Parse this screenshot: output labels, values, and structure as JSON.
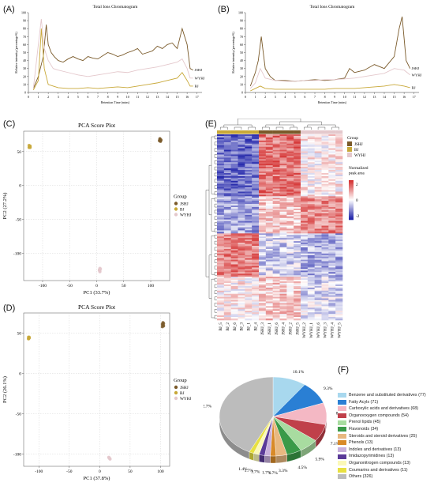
{
  "panel_letters": [
    "(A)",
    "(B)",
    "(C)",
    "(D)",
    "(E)",
    "(F)"
  ],
  "colors": {
    "JSHJ": "#7a5a2a",
    "BJ": "#c8a838",
    "WYHJ": "#e4c8cc",
    "heat_high": "#d43030",
    "heat_low": "#1c20a8"
  },
  "chart_data": [
    {
      "panel": "A",
      "type": "line",
      "title": "Total Ions Chromatogram",
      "xlabel": "Retention Time (mins)",
      "ylabel": "Relative intensity (percentage%)",
      "xticks": [
        "0",
        "1",
        "2",
        "3",
        "4",
        "5",
        "6",
        "7",
        "8",
        "9",
        "10",
        "11",
        "12",
        "13",
        "14",
        "15",
        "16",
        "17"
      ],
      "yticks": [
        "0",
        "10",
        "20",
        "30",
        "40",
        "50",
        "60",
        "70",
        "80",
        "90",
        "100"
      ],
      "series": [
        {
          "name": "JSHJ",
          "x": [
            0.5,
            1.0,
            1.5,
            1.8,
            2.0,
            2.3,
            2.6,
            3.0,
            3.5,
            4.0,
            4.5,
            5.0,
            5.5,
            6.0,
            6.5,
            7.0,
            7.5,
            8.0,
            8.5,
            9.0,
            9.5,
            10.0,
            10.5,
            11.0,
            11.5,
            12.0,
            12.5,
            13.0,
            13.5,
            14.0,
            14.5,
            15.0,
            15.5,
            16.0,
            16.3,
            16.6
          ],
          "y": [
            5,
            20,
            45,
            85,
            60,
            50,
            45,
            40,
            38,
            42,
            45,
            42,
            40,
            45,
            43,
            42,
            46,
            50,
            48,
            45,
            47,
            50,
            52,
            55,
            48,
            50,
            52,
            58,
            55,
            60,
            62,
            55,
            80,
            60,
            30,
            28
          ]
        },
        {
          "name": "WYHJ",
          "x": [
            0.5,
            1.0,
            1.3,
            1.6,
            2.0,
            2.5,
            3.0,
            4.0,
            5.0,
            6.0,
            7.0,
            8.0,
            9.0,
            10.0,
            11.0,
            12.0,
            13.0,
            14.0,
            15.0,
            15.5,
            16.0,
            16.3,
            16.6
          ],
          "y": [
            5,
            60,
            92,
            55,
            40,
            30,
            28,
            25,
            22,
            20,
            22,
            24,
            26,
            25,
            28,
            30,
            32,
            35,
            38,
            42,
            30,
            18,
            18
          ]
        },
        {
          "name": "BJ",
          "x": [
            0.5,
            1.0,
            1.3,
            1.6,
            2.0,
            2.5,
            3.0,
            4.0,
            5.0,
            6.0,
            7.0,
            8.0,
            9.0,
            10.0,
            11.0,
            12.0,
            13.0,
            14.0,
            15.0,
            15.5,
            16.0,
            16.3,
            16.6
          ],
          "y": [
            3,
            15,
            80,
            30,
            10,
            8,
            6,
            5,
            5,
            6,
            5,
            6,
            7,
            6,
            8,
            10,
            12,
            15,
            18,
            25,
            15,
            8,
            8
          ]
        }
      ]
    },
    {
      "panel": "B",
      "type": "line",
      "title": "Total Ions Chromatogram",
      "xlabel": "Retention Time (mins)",
      "ylabel": "Relative intensity (percentage%)",
      "xticks": [
        "0",
        "1",
        "2",
        "3",
        "4",
        "5",
        "6",
        "7",
        "8",
        "9",
        "10",
        "11",
        "12",
        "13",
        "14",
        "15",
        "16",
        "17"
      ],
      "yticks": [
        "0",
        "10",
        "20",
        "30",
        "40",
        "50",
        "60",
        "70",
        "80",
        "90",
        "100"
      ],
      "series": [
        {
          "name": "JSHJ",
          "x": [
            0.5,
            1.0,
            1.3,
            1.6,
            2.0,
            2.5,
            3.0,
            4.0,
            5.0,
            6.0,
            7.0,
            8.0,
            9.0,
            10.0,
            10.5,
            11.0,
            12.0,
            13.0,
            14.0,
            15.0,
            15.5,
            15.8,
            16.2,
            16.6
          ],
          "y": [
            8,
            25,
            40,
            70,
            30,
            20,
            15,
            15,
            14,
            15,
            16,
            15,
            16,
            18,
            30,
            25,
            28,
            35,
            30,
            45,
            80,
            95,
            40,
            30
          ]
        },
        {
          "name": "WYHJ",
          "x": [
            0.5,
            1.0,
            1.5,
            2.0,
            3.0,
            4.0,
            5.0,
            6.0,
            7.0,
            8.0,
            9.0,
            10.0,
            11.0,
            12.0,
            13.0,
            14.0,
            15.0,
            16.0,
            16.6
          ],
          "y": [
            5,
            12,
            30,
            18,
            15,
            14,
            14,
            15,
            15,
            16,
            16,
            17,
            18,
            20,
            22,
            24,
            30,
            28,
            22
          ]
        },
        {
          "name": "BJ",
          "x": [
            0.5,
            1.0,
            1.5,
            2.0,
            3.0,
            4.0,
            5.0,
            6.0,
            7.0,
            8.0,
            9.0,
            10.0,
            11.0,
            12.0,
            13.0,
            14.0,
            15.0,
            16.0,
            16.6
          ],
          "y": [
            2,
            5,
            8,
            5,
            4,
            4,
            4,
            4,
            4,
            4,
            5,
            5,
            5,
            6,
            7,
            8,
            10,
            8,
            6
          ]
        }
      ]
    },
    {
      "panel": "C",
      "type": "scatter",
      "title": "PCA Score Plot",
      "xlabel": "PC1 (33.7%)",
      "ylabel": "PC2 (27.2%)",
      "xlim": [
        -135,
        135
      ],
      "ylim": [
        -140,
        80
      ],
      "xticks": [
        "-100",
        "-50",
        "0",
        "50",
        "100"
      ],
      "yticks": [
        "50",
        "0",
        "-50",
        "-100"
      ],
      "legend_title": "Group",
      "series": [
        {
          "name": "JSHJ",
          "x": [
            116,
            117,
            118,
            119,
            117,
            118
          ],
          "y": [
            66,
            68,
            65,
            67,
            69,
            66
          ]
        },
        {
          "name": "BJ",
          "x": [
            -125,
            -124,
            -123,
            -125,
            -124,
            -123
          ],
          "y": [
            56,
            57,
            58,
            59,
            57,
            56
          ]
        },
        {
          "name": "WYHJ",
          "x": [
            5,
            6,
            6,
            5,
            7,
            6
          ],
          "y": [
            -124,
            -126,
            -122,
            -125,
            -123,
            -127
          ]
        }
      ]
    },
    {
      "panel": "D",
      "type": "scatter",
      "title": "PCA Score Plot",
      "xlabel": "PC1 (37.8%)",
      "ylabel": "PC2 (26.1%)",
      "xlim": [
        -125,
        115
      ],
      "ylim": [
        -115,
        75
      ],
      "xticks": [
        "-100",
        "-50",
        "0",
        "50",
        "100"
      ],
      "yticks": [
        "50",
        "0",
        "-50",
        "-100"
      ],
      "legend_title": "Group",
      "series": [
        {
          "name": "JSHJ",
          "x": [
            103,
            104,
            105,
            104,
            103,
            105
          ],
          "y": [
            58,
            60,
            62,
            63,
            61,
            59
          ]
        },
        {
          "name": "BJ",
          "x": [
            -117,
            -116,
            -117,
            -116,
            -117,
            -116
          ],
          "y": [
            43,
            44,
            45,
            44,
            43,
            45
          ]
        },
        {
          "name": "WYHJ",
          "x": [
            15,
            16,
            17,
            16,
            15,
            17
          ],
          "y": [
            -104,
            -105,
            -106,
            -105,
            -104,
            -106
          ]
        }
      ]
    },
    {
      "panel": "E",
      "type": "heatmap",
      "legend_title": "Group",
      "groups": [
        "JSHJ",
        "BJ",
        "WYHJ"
      ],
      "scale_title": "Normalized peak area",
      "scale_ticks": [
        "2",
        "0",
        "-2"
      ],
      "columns": [
        "BJ_5",
        "BJ_2",
        "BJ_6",
        "BJ_3",
        "BJ_1",
        "BJ_4",
        "JSHJ_3",
        "JSHJ_1",
        "JSHJ_6",
        "JSHJ_4",
        "JSHJ_2",
        "JSHJ_5",
        "WYHJ_2",
        "WYHJ_1",
        "WYHJ_6",
        "WYHJ_3",
        "WYHJ_4",
        "WYHJ_5"
      ],
      "column_groups": [
        "BJ",
        "BJ",
        "BJ",
        "BJ",
        "BJ",
        "BJ",
        "JSHJ",
        "JSHJ",
        "JSHJ",
        "JSHJ",
        "JSHJ",
        "JSHJ",
        "WYHJ",
        "WYHJ",
        "WYHJ",
        "WYHJ",
        "WYHJ",
        "WYHJ"
      ],
      "blocks": [
        {
          "rows": 40,
          "means": [
            -1.6,
            1.6,
            0.2
          ]
        },
        {
          "rows": 24,
          "means": [
            -1.0,
            0.6,
            1.4
          ]
        },
        {
          "rows": 28,
          "means": [
            1.5,
            -0.5,
            -0.9
          ]
        },
        {
          "rows": 28,
          "means": [
            0.2,
            0.6,
            -0.4
          ]
        }
      ]
    },
    {
      "panel": "F",
      "type": "pie",
      "slices": [
        {
          "label": "Benzene and substituted derivatives (77)",
          "value": 10.1,
          "pct": "10.1%",
          "color": "#a8d8ee"
        },
        {
          "label": "Fatty Acyls (71)",
          "value": 9.3,
          "pct": "9.3%",
          "color": "#2a7fd4"
        },
        {
          "label": "Carboxylic acids and derivatives (68)",
          "value": 8.9,
          "pct": "8.9%",
          "color": "#f4b8c4"
        },
        {
          "label": "Organooxygen compounds (54)",
          "value": 7.1,
          "pct": "7.1%",
          "color": "#c0404a"
        },
        {
          "label": "Prenol lipids (45)",
          "value": 5.9,
          "pct": "5.9%",
          "color": "#a8dca0"
        },
        {
          "label": "Flavonoids (34)",
          "value": 4.5,
          "pct": "4.5%",
          "color": "#3a9a48"
        },
        {
          "label": "Steroids and steroid derivatives (25)",
          "value": 3.3,
          "pct": "3.3%",
          "color": "#e8b880"
        },
        {
          "label": "Phenols (13)",
          "value": 1.7,
          "pct": "1.7%",
          "color": "#d88a28"
        },
        {
          "label": "Indoles and derivatives (13)",
          "value": 1.7,
          "pct": "1.7%",
          "color": "#c8b0dc"
        },
        {
          "label": "Imidazopyrimidines (13)",
          "value": 1.7,
          "pct": "1.7%",
          "color": "#5a3a98"
        },
        {
          "label": "Organonitrogen compounds (13)",
          "value": 1.7,
          "pct": "1.7%",
          "color": "#fbf8b8"
        },
        {
          "label": "Coumarins and derivatives (11)",
          "value": 1.4,
          "pct": "1.4%",
          "color": "#e8e040"
        },
        {
          "label": "Others (326)",
          "value": 42.7,
          "pct": "42.7%",
          "color": "#bcbcbc"
        }
      ]
    }
  ]
}
